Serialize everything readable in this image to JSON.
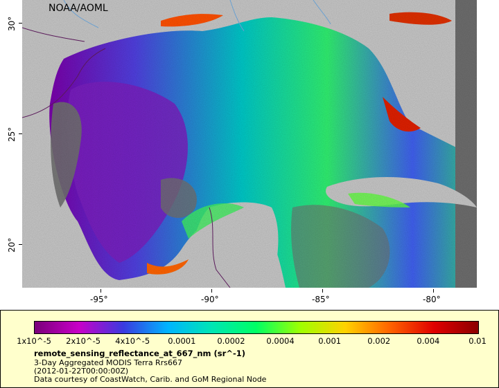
{
  "map": {
    "org_label": "NOAA/AOML",
    "x_ticks": [
      "-95°",
      "-90°",
      "-85°",
      "-80°"
    ],
    "y_ticks": [
      "30°",
      "25°",
      "20°"
    ],
    "colors": {
      "land": "#c8c8c8",
      "no_data": "#6e6e6e",
      "border": "#5a1a5a",
      "rivers": "#6aa0d0"
    }
  },
  "legend": {
    "colorbar_ticks": [
      "1x10^-5",
      "2x10^-5",
      "4x10^-5",
      "0.0001",
      "0.0002",
      "0.0004",
      "0.001",
      "0.002",
      "0.004",
      "0.01"
    ],
    "title": "remote_sensing_reflectance_at_667_nm (sr^-1)",
    "line1": "3-Day Aggregated MODIS Terra Rrs667",
    "line2": "(2012-01-22T00:00:00Z)",
    "line3": "Data courtesy of CoastWatch, Carib. and GoM Regional Node",
    "colormap": [
      "#7a007a",
      "#c800c8",
      "#3a3ae0",
      "#00b4ff",
      "#00e6b4",
      "#00ff64",
      "#a0ff00",
      "#ffd200",
      "#ff6400",
      "#e00000",
      "#8c0000"
    ]
  }
}
